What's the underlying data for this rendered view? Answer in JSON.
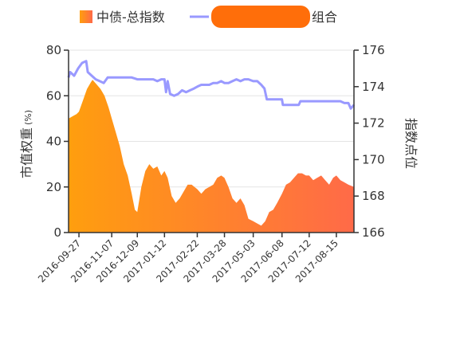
{
  "chart_data": {
    "type": "area",
    "x_dates": [
      "2016-09-27",
      "2016-11-07",
      "2016-12-09",
      "2017-01-12",
      "2017-02-22",
      "2017-03-28",
      "2017-05-03",
      "2017-06-08",
      "2017-07-12",
      "2017-08-15"
    ],
    "xlim": [
      "2016-09-14",
      "2017-09-06"
    ],
    "y_left": {
      "label": "市值权重",
      "unit": "(%)",
      "ticks": [
        0,
        20,
        40,
        60,
        80
      ],
      "lim": [
        0,
        80
      ]
    },
    "y_right": {
      "label": "指数点位",
      "ticks": [
        166,
        168,
        170,
        172,
        174,
        176
      ],
      "lim": [
        166,
        176
      ]
    },
    "legend": {
      "position": "top",
      "area_label": "中债-总指数",
      "line_label_suffix": "组合",
      "line_label_redacted": true
    },
    "grid": true,
    "series": [
      {
        "name": "中债-总指数",
        "type": "area",
        "axis": "left",
        "colors": {
          "start": "#ff9e0e",
          "end": "#ff6a48"
        },
        "points": [
          [
            "2016-09-14",
            50
          ],
          [
            "2016-09-19",
            51
          ],
          [
            "2016-09-24",
            52
          ],
          [
            "2016-09-27",
            53
          ],
          [
            "2016-10-02",
            58
          ],
          [
            "2016-10-07",
            63
          ],
          [
            "2016-10-12",
            66
          ],
          [
            "2016-10-14",
            67
          ],
          [
            "2016-10-19",
            65
          ],
          [
            "2016-10-24",
            63
          ],
          [
            "2016-10-29",
            60
          ],
          [
            "2016-11-03",
            55
          ],
          [
            "2016-11-07",
            50
          ],
          [
            "2016-11-12",
            44
          ],
          [
            "2016-11-17",
            38
          ],
          [
            "2016-11-22",
            30
          ],
          [
            "2016-11-27",
            25
          ],
          [
            "2016-12-02",
            17
          ],
          [
            "2016-12-06",
            10
          ],
          [
            "2016-12-09",
            9
          ],
          [
            "2016-12-14",
            20
          ],
          [
            "2016-12-19",
            27
          ],
          [
            "2016-12-24",
            30
          ],
          [
            "2016-12-29",
            28
          ],
          [
            "2017-01-03",
            29
          ],
          [
            "2017-01-08",
            25
          ],
          [
            "2017-01-12",
            27
          ],
          [
            "2017-01-16",
            24
          ],
          [
            "2017-01-21",
            16
          ],
          [
            "2017-01-26",
            13
          ],
          [
            "2017-01-31",
            15
          ],
          [
            "2017-02-05",
            18
          ],
          [
            "2017-02-10",
            21
          ],
          [
            "2017-02-15",
            21
          ],
          [
            "2017-02-22",
            19
          ],
          [
            "2017-02-27",
            17
          ],
          [
            "2017-03-04",
            19
          ],
          [
            "2017-03-09",
            20
          ],
          [
            "2017-03-14",
            21
          ],
          [
            "2017-03-19",
            24
          ],
          [
            "2017-03-24",
            25
          ],
          [
            "2017-03-28",
            24
          ],
          [
            "2017-04-02",
            20
          ],
          [
            "2017-04-07",
            15
          ],
          [
            "2017-04-12",
            13
          ],
          [
            "2017-04-17",
            15
          ],
          [
            "2017-04-22",
            12
          ],
          [
            "2017-04-27",
            6
          ],
          [
            "2017-05-03",
            5
          ],
          [
            "2017-05-08",
            4
          ],
          [
            "2017-05-13",
            3
          ],
          [
            "2017-05-18",
            5
          ],
          [
            "2017-05-23",
            9
          ],
          [
            "2017-05-28",
            10
          ],
          [
            "2017-06-02",
            13
          ],
          [
            "2017-06-08",
            17
          ],
          [
            "2017-06-13",
            21
          ],
          [
            "2017-06-18",
            22
          ],
          [
            "2017-06-23",
            24
          ],
          [
            "2017-06-28",
            26
          ],
          [
            "2017-07-03",
            26
          ],
          [
            "2017-07-08",
            25
          ],
          [
            "2017-07-12",
            25
          ],
          [
            "2017-07-17",
            23
          ],
          [
            "2017-07-22",
            24
          ],
          [
            "2017-07-27",
            25
          ],
          [
            "2017-08-01",
            23
          ],
          [
            "2017-08-06",
            21
          ],
          [
            "2017-08-11",
            24
          ],
          [
            "2017-08-15",
            25
          ],
          [
            "2017-08-20",
            23
          ],
          [
            "2017-08-25",
            22
          ],
          [
            "2017-08-30",
            21
          ],
          [
            "2017-09-06",
            20
          ]
        ]
      },
      {
        "name": "组合",
        "type": "line",
        "axis": "right",
        "color": "#9999ff",
        "points": [
          [
            "2016-09-14",
            174.5
          ],
          [
            "2016-09-16",
            174.8
          ],
          [
            "2016-09-21",
            174.6
          ],
          [
            "2016-09-26",
            175.0
          ],
          [
            "2016-10-01",
            175.3
          ],
          [
            "2016-10-06",
            175.4
          ],
          [
            "2016-10-08",
            174.8
          ],
          [
            "2016-10-13",
            174.6
          ],
          [
            "2016-10-18",
            174.4
          ],
          [
            "2016-10-23",
            174.3
          ],
          [
            "2016-10-28",
            174.2
          ],
          [
            "2016-11-02",
            174.5
          ],
          [
            "2016-11-07",
            174.5
          ],
          [
            "2016-11-12",
            174.5
          ],
          [
            "2016-11-17",
            174.5
          ],
          [
            "2016-11-22",
            174.5
          ],
          [
            "2016-11-27",
            174.5
          ],
          [
            "2016-12-02",
            174.5
          ],
          [
            "2016-12-09",
            174.4
          ],
          [
            "2016-12-14",
            174.4
          ],
          [
            "2016-12-19",
            174.4
          ],
          [
            "2016-12-24",
            174.4
          ],
          [
            "2016-12-29",
            174.4
          ],
          [
            "2017-01-03",
            174.3
          ],
          [
            "2017-01-08",
            174.4
          ],
          [
            "2017-01-12",
            174.4
          ],
          [
            "2017-01-14",
            173.7
          ],
          [
            "2017-01-16",
            174.3
          ],
          [
            "2017-01-19",
            173.6
          ],
          [
            "2017-01-24",
            173.5
          ],
          [
            "2017-01-29",
            173.6
          ],
          [
            "2017-02-03",
            173.8
          ],
          [
            "2017-02-08",
            173.7
          ],
          [
            "2017-02-13",
            173.8
          ],
          [
            "2017-02-18",
            173.9
          ],
          [
            "2017-02-22",
            174.0
          ],
          [
            "2017-02-27",
            174.1
          ],
          [
            "2017-03-04",
            174.1
          ],
          [
            "2017-03-09",
            174.1
          ],
          [
            "2017-03-14",
            174.2
          ],
          [
            "2017-03-19",
            174.2
          ],
          [
            "2017-03-24",
            174.3
          ],
          [
            "2017-03-28",
            174.2
          ],
          [
            "2017-04-02",
            174.2
          ],
          [
            "2017-04-07",
            174.3
          ],
          [
            "2017-04-12",
            174.4
          ],
          [
            "2017-04-17",
            174.3
          ],
          [
            "2017-04-22",
            174.4
          ],
          [
            "2017-04-27",
            174.4
          ],
          [
            "2017-05-03",
            174.3
          ],
          [
            "2017-05-08",
            174.3
          ],
          [
            "2017-05-13",
            174.1
          ],
          [
            "2017-05-17",
            173.9
          ],
          [
            "2017-05-20",
            173.3
          ],
          [
            "2017-05-25",
            173.3
          ],
          [
            "2017-05-30",
            173.3
          ],
          [
            "2017-06-04",
            173.3
          ],
          [
            "2017-06-08",
            173.3
          ],
          [
            "2017-06-09",
            173.0
          ],
          [
            "2017-06-14",
            173.0
          ],
          [
            "2017-06-19",
            173.0
          ],
          [
            "2017-06-24",
            173.0
          ],
          [
            "2017-06-29",
            173.0
          ],
          [
            "2017-07-01",
            173.2
          ],
          [
            "2017-07-06",
            173.2
          ],
          [
            "2017-07-12",
            173.2
          ],
          [
            "2017-07-17",
            173.2
          ],
          [
            "2017-07-22",
            173.2
          ],
          [
            "2017-07-27",
            173.2
          ],
          [
            "2017-08-01",
            173.2
          ],
          [
            "2017-08-06",
            173.2
          ],
          [
            "2017-08-11",
            173.2
          ],
          [
            "2017-08-15",
            173.2
          ],
          [
            "2017-08-20",
            173.2
          ],
          [
            "2017-08-25",
            173.1
          ],
          [
            "2017-08-30",
            173.1
          ],
          [
            "2017-09-02",
            172.8
          ],
          [
            "2017-09-06",
            173.0
          ]
        ]
      }
    ]
  }
}
